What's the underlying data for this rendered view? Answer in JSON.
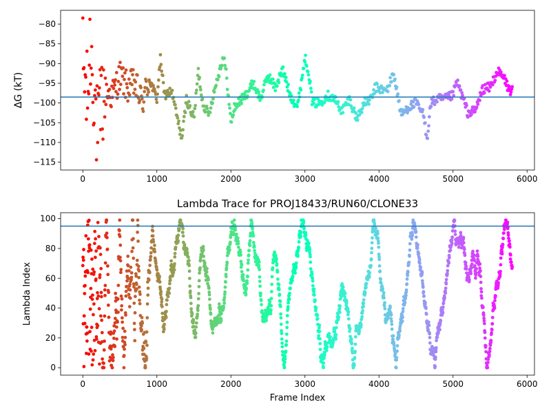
{
  "chart_data": [
    {
      "type": "scatter",
      "title": "",
      "xlabel": "",
      "ylabel": "ΔG (kT)",
      "xlim": [
        -300,
        6100
      ],
      "ylim": [
        -117,
        -76.5
      ],
      "xticks": [
        0,
        1000,
        2000,
        3000,
        4000,
        5000,
        6000
      ],
      "xtick_labels": [
        "0",
        "1000",
        "2000",
        "3000",
        "4000",
        "5000",
        "6000"
      ],
      "yticks": [
        -80,
        -85,
        -90,
        -95,
        -100,
        -105,
        -110,
        -115
      ],
      "ytick_labels": [
        "−80",
        "−85",
        "−90",
        "−95",
        "−100",
        "−105",
        "−110",
        "−115"
      ],
      "hline": -98.5,
      "hline_color": "#1f77b4",
      "colormap": "rainbow (red at frame 0 → violet at last frame)",
      "n_frames": 5800,
      "series": [
        {
          "x": [
            0,
            60,
            100,
            150,
            200,
            250,
            300,
            400,
            500,
            600,
            700,
            800,
            900,
            1000,
            1050,
            1100,
            1200,
            1300,
            1340,
            1400,
            1500,
            1560,
            1620,
            1700,
            1800,
            1900,
            1940,
            2000,
            2050,
            2200,
            2300,
            2400,
            2500,
            2600,
            2700,
            2800,
            2900,
            3000,
            3050,
            3100,
            3200,
            3300,
            3400,
            3500,
            3600,
            3700,
            3800,
            3900,
            3950,
            4100,
            4200,
            4300,
            4400,
            4500,
            4600,
            4650,
            4700,
            4800,
            4900,
            5000,
            5050,
            5100,
            5200,
            5300,
            5400,
            5500,
            5600,
            5700,
            5750,
            5800
          ],
          "y": [
            -90,
            -100,
            -85,
            -95,
            -110,
            -100,
            -97,
            -98,
            -93,
            -96,
            -95,
            -100,
            -94,
            -99,
            -88.5,
            -98,
            -97,
            -106,
            -109,
            -99,
            -104,
            -92,
            -100,
            -103,
            -95,
            -88,
            -93,
            -105,
            -101,
            -98,
            -95,
            -99,
            -93,
            -96,
            -91.5,
            -98,
            -101,
            -88.5,
            -92,
            -100,
            -100,
            -98,
            -99,
            -102,
            -99,
            -104,
            -100,
            -99,
            -96,
            -97,
            -92.5,
            -103,
            -101,
            -100,
            -103,
            -109,
            -100,
            -99,
            -99,
            -98,
            -94.5,
            -97,
            -102.5,
            -102,
            -96.5,
            -96,
            -92,
            -94,
            -96.5,
            -97
          ]
        }
      ]
    },
    {
      "type": "scatter",
      "title": "Lambda Trace for PROJ18433/RUN60/CLONE33",
      "xlabel": "Frame Index",
      "ylabel": "Lambda Index",
      "xlim": [
        -300,
        6100
      ],
      "ylim": [
        -5,
        104
      ],
      "xticks": [
        0,
        1000,
        2000,
        3000,
        4000,
        5000,
        6000
      ],
      "xtick_labels": [
        "0",
        "1000",
        "2000",
        "3000",
        "4000",
        "5000",
        "6000"
      ],
      "yticks": [
        0,
        20,
        40,
        60,
        80,
        100
      ],
      "ytick_labels": [
        "0",
        "20",
        "40",
        "60",
        "80",
        "100"
      ],
      "hline": 95,
      "hline_color": "#1f77b4",
      "colormap": "rainbow (red at frame 0 → violet at last frame)",
      "n_frames": 5800,
      "lambda_range": [
        0,
        99
      ]
    }
  ]
}
